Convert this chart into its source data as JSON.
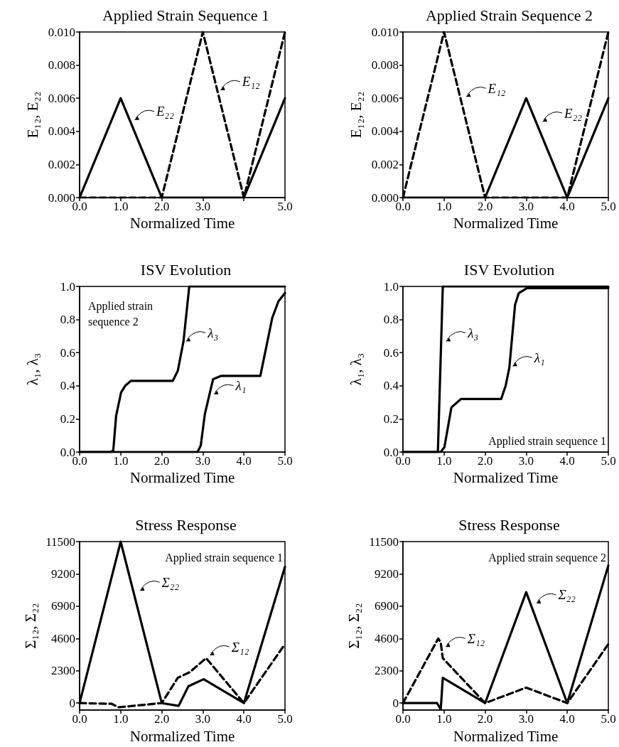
{
  "chart_data": [
    {
      "type": "line",
      "title": "Applied Strain Sequence 1",
      "xlabel": "Normalized Time",
      "ylabel": "E₁₂, E₂₂",
      "xlim": [
        0,
        5
      ],
      "xticks": [
        {
          "value": 0,
          "label": "0.0"
        },
        {
          "value": 1,
          "label": "1.0"
        },
        {
          "value": 2,
          "label": "2.0"
        },
        {
          "value": 3,
          "label": "3.0"
        },
        {
          "value": 4,
          "label": null
        },
        {
          "value": 5,
          "label": "5.0"
        }
      ],
      "ylim": [
        0,
        0.01
      ],
      "yticks": [
        {
          "value": 0,
          "label": "0.000"
        },
        {
          "value": 0.002,
          "label": "0.002"
        },
        {
          "value": 0.004,
          "label": "0.004"
        },
        {
          "value": 0.006,
          "label": "0.006"
        },
        {
          "value": 0.008,
          "label": "0.008"
        },
        {
          "value": 0.01,
          "label": "0.010"
        }
      ],
      "series": [
        {
          "color": "#000000",
          "line_style": "solid",
          "x": [
            0,
            1,
            2,
            4,
            5
          ],
          "values": [
            0,
            0.006,
            0,
            0,
            0.006
          ]
        },
        {
          "color": "#000000",
          "line_style": "dashed",
          "x": [
            0,
            2,
            3,
            4,
            5
          ],
          "values": [
            0,
            0,
            0.01,
            0,
            0.01
          ]
        }
      ],
      "annotations": [
        {
          "text": "E₂₂",
          "x": 1.28,
          "y": 0.0046
        },
        {
          "text": "E₁₂",
          "x": 3.37,
          "y": 0.0064
        }
      ]
    },
    {
      "type": "line",
      "title": "Applied Strain Sequence 2",
      "xlabel": "Normalized Time",
      "ylabel": "E₁₂, E₂₂",
      "xlim": [
        0,
        5
      ],
      "xticks": [
        {
          "value": 0,
          "label": "0.0"
        },
        {
          "value": 1,
          "label": "1.0"
        },
        {
          "value": 2,
          "label": "2.0"
        },
        {
          "value": 3,
          "label": "3.0"
        },
        {
          "value": 4,
          "label": "4.0"
        },
        {
          "value": 5,
          "label": "5.0"
        }
      ],
      "ylim": [
        0,
        0.01
      ],
      "yticks": [
        {
          "value": 0,
          "label": "0.000"
        },
        {
          "value": 0.002,
          "label": "0.002"
        },
        {
          "value": 0.004,
          "label": "0.004"
        },
        {
          "value": 0.006,
          "label": "0.006"
        },
        {
          "value": 0.008,
          "label": "0.008"
        },
        {
          "value": 0.01,
          "label": "0.010"
        }
      ],
      "series": [
        {
          "color": "#000000",
          "line_style": "dashed",
          "x": [
            0,
            1,
            2,
            4,
            5
          ],
          "values": [
            0,
            0.01,
            0,
            0,
            0.01
          ]
        },
        {
          "color": "#000000",
          "line_style": "solid",
          "x": [
            0,
            2,
            3,
            4,
            5
          ],
          "values": [
            0,
            0,
            0.006,
            0,
            0.006
          ]
        }
      ],
      "annotations": [
        {
          "text": "E₁₂",
          "x": 1.48,
          "y": 0.006
        },
        {
          "text": "E₂₂",
          "x": 3.34,
          "y": 0.0045
        }
      ]
    },
    {
      "type": "line",
      "title": "ISV Evolution",
      "xlabel": "Normalized Time",
      "ylabel": "λ₁, λ₃",
      "xlim": [
        0,
        5
      ],
      "xticks": [
        {
          "value": 0,
          "label": "0.0"
        },
        {
          "value": 1,
          "label": "1.0"
        },
        {
          "value": 2,
          "label": "2.0"
        },
        {
          "value": 3,
          "label": "3.0"
        },
        {
          "value": 4,
          "label": "4.0"
        },
        {
          "value": 5,
          "label": "5.0"
        }
      ],
      "ylim": [
        0,
        1
      ],
      "yticks": [
        {
          "value": 0,
          "label": "0.0"
        },
        {
          "value": 0.2,
          "label": "0.2"
        },
        {
          "value": 0.4,
          "label": "0.4"
        },
        {
          "value": 0.6,
          "label": "0.6"
        },
        {
          "value": 0.8,
          "label": "0.8"
        },
        {
          "value": 1,
          "label": "1.0"
        }
      ],
      "series": [
        {
          "color": "#000000",
          "line_style": "solid",
          "x": [
            0,
            0.76,
            0.82,
            0.89,
            1.01,
            1.11,
            1.25,
            2.27,
            2.39,
            2.53,
            2.67,
            5
          ],
          "values": [
            0,
            0,
            0.01,
            0.22,
            0.36,
            0.4,
            0.43,
            0.43,
            0.49,
            0.67,
            1,
            1
          ]
        },
        {
          "color": "#000000",
          "line_style": "solid",
          "x": [
            0,
            2.87,
            2.95,
            3.05,
            3.25,
            3.45,
            4.4,
            4.69,
            4.84,
            5
          ],
          "values": [
            0,
            0,
            0.04,
            0.23,
            0.44,
            0.46,
            0.46,
            0.81,
            0.91,
            0.96
          ]
        }
      ],
      "annotations": [
        "Applied strain sequence 2",
        {
          "text": "λ₃",
          "x": 2.53,
          "y": 0.66
        },
        {
          "text": "λ₁",
          "x": 3.21,
          "y": 0.34
        }
      ]
    },
    {
      "type": "line",
      "title": "ISV Evolution",
      "xlabel": "Normalized Time",
      "ylabel": "λ₁, λ₃",
      "xlim": [
        0,
        5
      ],
      "xticks": [
        {
          "value": 0,
          "label": "0.0"
        },
        {
          "value": 1,
          "label": "1.0"
        },
        {
          "value": 2,
          "label": "2.0"
        },
        {
          "value": 3,
          "label": "3.0"
        },
        {
          "value": 4,
          "label": "4.0"
        },
        {
          "value": 5,
          "label": "5.0"
        }
      ],
      "ylim": [
        0,
        1
      ],
      "yticks": [
        {
          "value": 0,
          "label": "0.0"
        },
        {
          "value": 0.2,
          "label": "0.2"
        },
        {
          "value": 0.4,
          "label": "0.4"
        },
        {
          "value": 0.6,
          "label": "0.6"
        },
        {
          "value": 0.8,
          "label": "0.8"
        },
        {
          "value": 1,
          "label": "1.0"
        }
      ],
      "series": [
        {
          "color": "#000000",
          "line_style": "solid",
          "x": [
            0,
            0.85,
            0.97,
            5
          ],
          "values": [
            0,
            0,
            1,
            1
          ]
        },
        {
          "color": "#000000",
          "line_style": "solid",
          "x": [
            0,
            0.92,
            1.01,
            1.18,
            1.41,
            2.39,
            2.5,
            2.59,
            2.73,
            2.82,
            3.02,
            5
          ],
          "values": [
            0,
            0,
            0.03,
            0.27,
            0.32,
            0.32,
            0.4,
            0.51,
            0.89,
            0.96,
            0.99,
            0.99
          ]
        }
      ],
      "annotations": [
        "Applied strain sequence 1",
        {
          "text": "λ₃",
          "x": 0.99,
          "y": 0.66
        },
        {
          "text": "λ₁",
          "x": 2.61,
          "y": 0.51
        }
      ]
    },
    {
      "type": "line",
      "title": "Stress Response",
      "xlabel": "Normalized Time",
      "ylabel": "Σ₁₂, Σ₂₂",
      "xlim": [
        0,
        5
      ],
      "xticks": [
        {
          "value": 0,
          "label": "0.0"
        },
        {
          "value": 1,
          "label": "1.0"
        },
        {
          "value": 2,
          "label": "2.0"
        },
        {
          "value": 3,
          "label": "3.0"
        },
        {
          "value": 4,
          "label": "4.0"
        },
        {
          "value": 5,
          "label": "5.0"
        }
      ],
      "ylim": [
        -500,
        11500
      ],
      "yticks": [
        0,
        2300,
        4600,
        6900,
        9200,
        11500
      ],
      "series": [
        {
          "color": "#000000",
          "line_style": "solid",
          "x": [
            0,
            1,
            2,
            2.41,
            2.65,
            3.02,
            4,
            5
          ],
          "values": [
            0,
            11500,
            0,
            -200,
            1200,
            1700,
            0,
            9700
          ]
        },
        {
          "color": "#000000",
          "line_style": "dashed",
          "x": [
            0,
            0.78,
            0.95,
            1.3,
            2,
            2.39,
            2.68,
            3.08,
            4,
            5
          ],
          "values": [
            0,
            -50,
            -300,
            -200,
            0,
            1800,
            2200,
            3200,
            0,
            4200
          ]
        }
      ],
      "annotations": [
        "Applied strain sequence 1",
        {
          "text": "Σ₂₂",
          "x": 1.41,
          "y": 7900
        },
        {
          "text": "Σ₁₂",
          "x": 3.11,
          "y": 3300
        }
      ]
    },
    {
      "type": "line",
      "title": "Stress Response",
      "xlabel": "Normalized Time",
      "ylabel": "Σ₁₂, Σ₂₂",
      "xlim": [
        0,
        5
      ],
      "xticks": [
        {
          "value": 0,
          "label": "0.0"
        },
        {
          "value": 1,
          "label": "1.0"
        },
        {
          "value": 2,
          "label": "2.0"
        },
        {
          "value": 3,
          "label": "3.0"
        },
        {
          "value": 4,
          "label": "4.0"
        },
        {
          "value": 5,
          "label": "5.0"
        }
      ],
      "ylim": [
        -500,
        11500
      ],
      "yticks": [
        0,
        2300,
        4600,
        6900,
        9200,
        11500
      ],
      "series": [
        {
          "color": "#000000",
          "line_style": "solid",
          "x": [
            0,
            0.83,
            0.92,
            0.97,
            2,
            3,
            4,
            5
          ],
          "values": [
            0,
            0,
            -450,
            1800,
            0,
            7900,
            0,
            9800
          ]
        },
        {
          "color": "#000000",
          "line_style": "dashed",
          "x": [
            0,
            0.86,
            0.92,
            0.97,
            2,
            3,
            4,
            5
          ],
          "values": [
            0,
            4600,
            4300,
            3200,
            0,
            1100,
            0,
            4200
          ]
        }
      ],
      "annotations": [
        "Applied strain sequence 2",
        {
          "text": "Σ₁₂",
          "x": 0.98,
          "y": 3900
        },
        {
          "text": "Σ₂₂",
          "x": 3.19,
          "y": 7000
        }
      ]
    }
  ]
}
